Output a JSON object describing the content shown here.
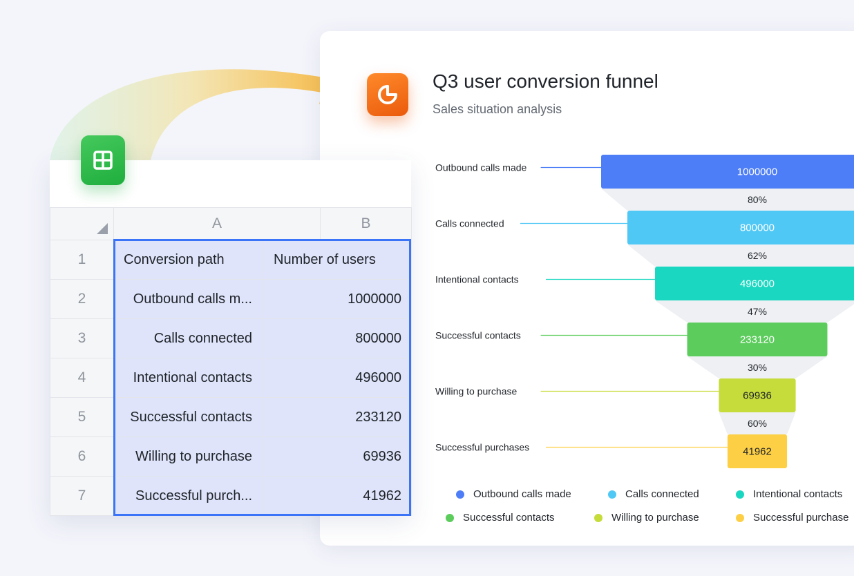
{
  "spreadsheet": {
    "columns": [
      "A",
      "B"
    ],
    "rows": [
      {
        "num": "1",
        "a": "Conversion path",
        "b": "Number of users"
      },
      {
        "num": "2",
        "a": "Outbound calls m...",
        "b": "1000000"
      },
      {
        "num": "3",
        "a": "Calls connected",
        "b": "800000"
      },
      {
        "num": "4",
        "a": "Intentional contacts",
        "b": "496000"
      },
      {
        "num": "5",
        "a": "Successful contacts",
        "b": "233120"
      },
      {
        "num": "6",
        "a": "Willing to purchase",
        "b": "69936"
      },
      {
        "num": "7",
        "a": "Successful purch...",
        "b": "41962"
      }
    ]
  },
  "chart": {
    "title": "Q3 user conversion funnel",
    "subtitle": "Sales situation analysis"
  },
  "chart_data": {
    "type": "funnel",
    "title": "Q3 user conversion funnel",
    "subtitle": "Sales situation analysis",
    "categories": [
      "Outbound calls made",
      "Calls connected",
      "Intentional contacts",
      "Successful contacts",
      "Willing to purchase",
      "Successful purchases"
    ],
    "values": [
      1000000,
      800000,
      496000,
      233120,
      69936,
      41962
    ],
    "conversion_rates": [
      "80%",
      "62%",
      "47%",
      "30%",
      "60%"
    ],
    "colors": [
      "#4d7ef7",
      "#4fc8f5",
      "#19d7c0",
      "#5ccd5d",
      "#c6dc3a",
      "#fdcf45"
    ],
    "legend": [
      "Outbound calls made",
      "Calls connected",
      "Intentional contacts",
      "Successful contacts",
      "Willing to purchase",
      "Successful purchase"
    ],
    "legend_placement": "bottom"
  },
  "colors": {
    "accent": "#3b74f6",
    "sheet_logo": "#26b346",
    "chart_logo": "#f0701a",
    "arrow_start": "#c8ecd4",
    "arrow_end": "#f7b53a"
  },
  "icons": {
    "sheet_logo": "spreadsheet-icon",
    "chart_logo": "pie-chart-icon"
  }
}
